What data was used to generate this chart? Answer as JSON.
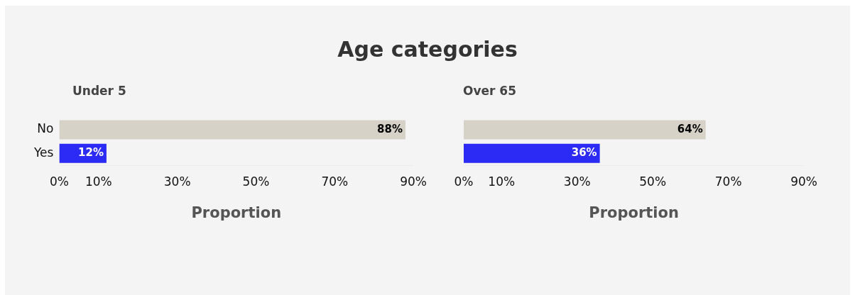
{
  "chart_data": [
    {
      "type": "bar",
      "orientation": "horizontal",
      "title": "Age categories",
      "subtitle": "Under 5",
      "xlabel": "Proportion",
      "categories": [
        "No",
        "Yes"
      ],
      "values": [
        88,
        12
      ],
      "colors": [
        "#d6d2c8",
        "#2b2bf5"
      ],
      "value_labels": [
        "88%",
        "12%"
      ],
      "xlim": [
        0,
        90
      ],
      "xticks": [
        {
          "value": 0,
          "label": "0%"
        },
        {
          "value": 10,
          "label": "10%"
        },
        {
          "value": 30,
          "label": "30%"
        },
        {
          "value": 50,
          "label": "50%"
        },
        {
          "value": 70,
          "label": "70%"
        },
        {
          "value": 90,
          "label": "90%"
        }
      ],
      "grid": false,
      "legend": false
    },
    {
      "type": "bar",
      "orientation": "horizontal",
      "subtitle": "Over 65",
      "xlabel": "Proportion",
      "categories": [
        null,
        null
      ],
      "values": [
        64,
        36
      ],
      "colors": [
        "#d6d2c8",
        "#2b2bf5"
      ],
      "value_labels": [
        "64%",
        "36%"
      ],
      "xlim": [
        0,
        90
      ],
      "xticks": [
        {
          "value": 0,
          "label": "0%"
        },
        {
          "value": 10,
          "label": "10%"
        },
        {
          "value": 30,
          "label": "30%"
        },
        {
          "value": 50,
          "label": "50%"
        },
        {
          "value": 70,
          "label": "70%"
        },
        {
          "value": 90,
          "label": "90%"
        }
      ],
      "grid": false,
      "legend": false,
      "tick_labels": "x"
    }
  ]
}
